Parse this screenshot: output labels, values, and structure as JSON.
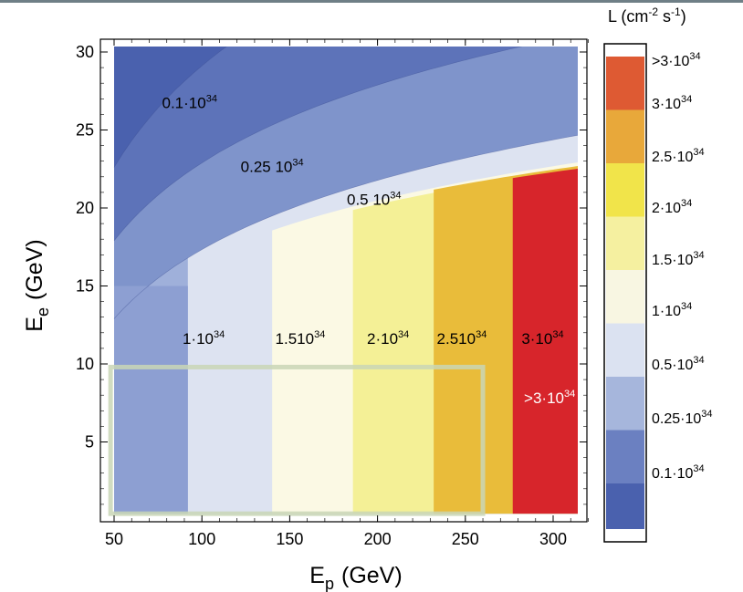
{
  "chart_data": {
    "type": "contour",
    "xlabel": "E",
    "xlabel_sub": "p",
    "xlabel_unit": "(GeV)",
    "ylabel": "E",
    "ylabel_sub": "e",
    "ylabel_unit": "(GeV)",
    "xlim": [
      45,
      330
    ],
    "ylim": [
      0,
      31
    ],
    "xticks": [
      "50",
      "100",
      "150",
      "200",
      "250",
      "300"
    ],
    "xtick_values": [
      50,
      100,
      150,
      200,
      250,
      300
    ],
    "yticks": [
      "5",
      "10",
      "15",
      "20",
      "25",
      "30"
    ],
    "ytick_values": [
      5,
      10,
      15,
      20,
      25,
      30
    ],
    "colorbar_title": "L  (cm",
    "colorbar_title_exp1": "-2",
    "colorbar_title_mid": " s",
    "colorbar_title_exp2": "-1",
    "colorbar_title_end": ")",
    "levels": [
      {
        "label": "0.1·10",
        "exp": "34",
        "color": "#4a61ae"
      },
      {
        "label": "0.25·10",
        "exp": "34",
        "color": "#6b80c1"
      },
      {
        "label": "0.5·10",
        "exp": "34",
        "color": "#a6b6dc"
      },
      {
        "label": "1·10",
        "exp": "34",
        "color": "#dbe2f1"
      },
      {
        "label": "1.5·10",
        "exp": "34",
        "color": "#f8f6e2"
      },
      {
        "label": "2·10",
        "exp": "34",
        "color": "#f5f0a0"
      },
      {
        "label": "2.5·10",
        "exp": "34",
        "color": "#f1e44a"
      },
      {
        "label": "3·10",
        "exp": "34",
        "color": "#e8a83a"
      },
      {
        "label": ">3·10",
        "exp": "34",
        "color": "#de5a33"
      }
    ],
    "region_colors": {
      "base": "#4a61ae",
      "band_025": "#5d73b9",
      "band_05": "#7f94cb",
      "band_1": "#9fb0da",
      "band_15": "#dde3f1",
      "low_base": "#8d9fd2",
      "v1": "#dde3f1",
      "v15": "#fbf9e4",
      "v2": "#f4f096",
      "v25": "#e9bc3a",
      "v3": "#d7252b"
    },
    "contour_labels": [
      {
        "text": "0.1·10",
        "exp": "34",
        "x": 93,
        "y": 26.4,
        "white": false
      },
      {
        "text": "0.25 10",
        "exp": "34",
        "x": 140,
        "y": 22.3,
        "white": false
      },
      {
        "text": "0.5 10",
        "exp": "34",
        "x": 198,
        "y": 20.2,
        "white": false
      },
      {
        "text": "1·10",
        "exp": "34",
        "x": 101,
        "y": 11.3,
        "white": false
      },
      {
        "text": "1.510",
        "exp": "34",
        "x": 156,
        "y": 11.3,
        "white": false
      },
      {
        "text": "2·10",
        "exp": "34",
        "x": 206,
        "y": 11.3,
        "white": false
      },
      {
        "text": "2.510",
        "exp": "34",
        "x": 248,
        "y": 11.3,
        "white": false
      },
      {
        "text": "3·10",
        "exp": "34",
        "x": 294,
        "y": 11.3,
        "white": false
      },
      {
        "text": ">3·10",
        "exp": "34",
        "x": 298,
        "y": 7.5,
        "white": true
      }
    ],
    "highlight_box": {
      "x": [
        48,
        260
      ],
      "y": [
        0.4,
        9.8
      ]
    },
    "grid": false
  }
}
